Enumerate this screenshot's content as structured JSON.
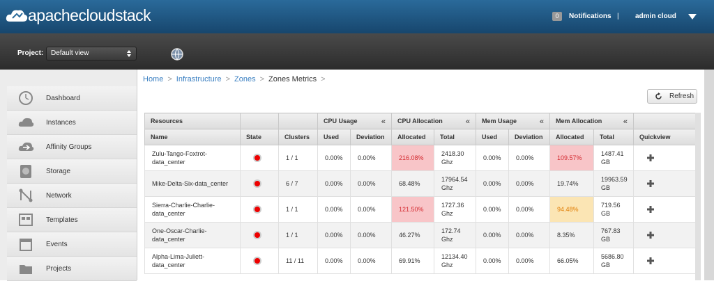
{
  "header": {
    "logo": "apachecloudstack",
    "notification_count": "0",
    "notifications": "Notifications",
    "separator": "|",
    "user": "admin cloud"
  },
  "project_bar": {
    "label": "Project:",
    "selected": "Default view"
  },
  "nav": [
    "Dashboard",
    "Instances",
    "Affinity Groups",
    "Storage",
    "Network",
    "Templates",
    "Events",
    "Projects"
  ],
  "breadcrumb": {
    "items": [
      "Home",
      "Infrastructure",
      "Zones",
      "Zones Metrics"
    ],
    "separator": ">"
  },
  "refresh": "Refresh",
  "table": {
    "resources_group": "Resources",
    "groups": [
      {
        "label": "CPU Usage",
        "collapse": "«"
      },
      {
        "label": "CPU Allocation",
        "collapse": "«"
      },
      {
        "label": "Mem Usage",
        "collapse": "«"
      },
      {
        "label": "Mem Allocation",
        "collapse": "«"
      }
    ],
    "columns": [
      "Name",
      "State",
      "Clusters",
      "Used",
      "Deviation",
      "Allocated",
      "Total",
      "Used",
      "Deviation",
      "Allocated",
      "Total",
      "Quickview"
    ],
    "rows": [
      [
        "Zulu-Tango-Foxtrot-data_center",
        "1 / 1",
        "0.00%",
        "0.00%",
        "216.08%",
        "2418.30 Ghz",
        "0.00%",
        "0.00%",
        "109.57%",
        "1487.41 GB"
      ],
      [
        "Mike-Delta-Six-data_center",
        "6 / 7",
        "0.00%",
        "0.00%",
        "68.48%",
        "17964.54 Ghz",
        "0.00%",
        "0.00%",
        "19.74%",
        "19963.59 GB"
      ],
      [
        "Sierra-Charlie-Charlie-data_center",
        "1 / 1",
        "0.00%",
        "0.00%",
        "121.50%",
        "1727.36 Ghz",
        "0.00%",
        "0.00%",
        "94.48%",
        "719.56 GB"
      ],
      [
        "One-Oscar-Charlie-data_center",
        "1 / 1",
        "0.00%",
        "0.00%",
        "46.27%",
        "172.74 Ghz",
        "0.00%",
        "0.00%",
        "8.35%",
        "767.83 GB"
      ],
      [
        "Alpha-Lima-Juliett-data_center",
        "11 / 11",
        "0.00%",
        "0.00%",
        "69.91%",
        "12134.40 Ghz",
        "0.00%",
        "0.00%",
        "66.05%",
        "5686.80 GB"
      ]
    ],
    "highlights": [
      {
        "row": 0,
        "column": 4,
        "level": "danger"
      },
      {
        "row": 0,
        "column": 8,
        "level": "danger"
      },
      {
        "row": 2,
        "column": 4,
        "level": "danger"
      },
      {
        "row": 2,
        "column": 8,
        "level": "warning"
      }
    ]
  }
}
